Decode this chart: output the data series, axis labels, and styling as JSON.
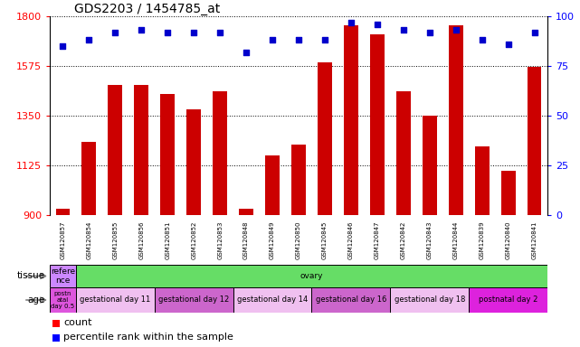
{
  "title": "GDS2203 / 1454785_at",
  "samples": [
    "GSM120857",
    "GSM120854",
    "GSM120855",
    "GSM120856",
    "GSM120851",
    "GSM120852",
    "GSM120853",
    "GSM120848",
    "GSM120849",
    "GSM120850",
    "GSM120845",
    "GSM120846",
    "GSM120847",
    "GSM120842",
    "GSM120843",
    "GSM120844",
    "GSM120839",
    "GSM120840",
    "GSM120841"
  ],
  "counts": [
    930,
    1230,
    1490,
    1490,
    1450,
    1380,
    1460,
    930,
    1170,
    1220,
    1590,
    1760,
    1720,
    1460,
    1350,
    1760,
    1210,
    1100,
    1570
  ],
  "percentiles": [
    85,
    88,
    92,
    93,
    92,
    92,
    92,
    82,
    88,
    88,
    88,
    97,
    96,
    93,
    92,
    93,
    88,
    86,
    92
  ],
  "ylim_left": [
    900,
    1800
  ],
  "ylim_right": [
    0,
    100
  ],
  "yticks_left": [
    900,
    1125,
    1350,
    1575,
    1800
  ],
  "yticks_right": [
    0,
    25,
    50,
    75,
    100
  ],
  "tissue_groups": [
    {
      "label": "refere\nnce",
      "color": "#cc88ff",
      "start": 0,
      "end": 1
    },
    {
      "label": "ovary",
      "color": "#66dd66",
      "start": 1,
      "end": 19
    }
  ],
  "age_groups": [
    {
      "label": "postn\natal\nday 0.5",
      "color": "#dd55dd",
      "start": 0,
      "end": 1
    },
    {
      "label": "gestational day 11",
      "color": "#f0c0f0",
      "start": 1,
      "end": 4
    },
    {
      "label": "gestational day 12",
      "color": "#cc66cc",
      "start": 4,
      "end": 7
    },
    {
      "label": "gestational day 14",
      "color": "#f0c0f0",
      "start": 7,
      "end": 10
    },
    {
      "label": "gestational day 16",
      "color": "#cc66cc",
      "start": 10,
      "end": 13
    },
    {
      "label": "gestational day 18",
      "color": "#f0c0f0",
      "start": 13,
      "end": 16
    },
    {
      "label": "postnatal day 2",
      "color": "#dd22dd",
      "start": 16,
      "end": 19
    }
  ],
  "bar_color": "#cc0000",
  "dot_color": "#0000cc",
  "plot_bg": "#ffffff",
  "sample_bg": "#cccccc"
}
